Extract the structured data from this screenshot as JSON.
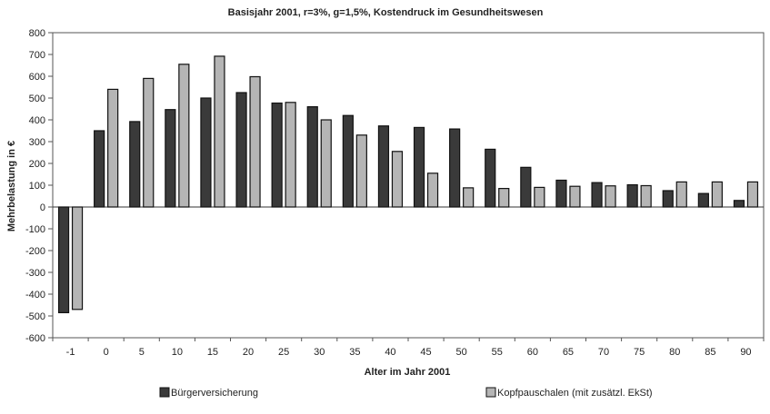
{
  "chart_data": {
    "type": "bar",
    "title": "Basisjahr 2001, r=3%, g=1,5%, Kostendruck im Gesundheitswesen",
    "xlabel": "Alter im Jahr 2001",
    "ylabel": "Mehrbelastung in €",
    "categories": [
      "-1",
      "0",
      "5",
      "10",
      "15",
      "20",
      "25",
      "30",
      "35",
      "40",
      "45",
      "50",
      "55",
      "60",
      "65",
      "70",
      "75",
      "80",
      "85",
      "90"
    ],
    "series": [
      {
        "name": "Bürgerversicherung",
        "color": "#3a3a3a",
        "values": [
          -485,
          350,
          392,
          447,
          500,
          525,
          477,
          460,
          420,
          372,
          365,
          358,
          265,
          182,
          123,
          112,
          102,
          75,
          62,
          30
        ]
      },
      {
        "name": "Kopfpauschalen (mit zusätzl. EkSt)",
        "color": "#b5b5b5",
        "values": [
          -470,
          540,
          590,
          655,
          692,
          598,
          480,
          400,
          330,
          255,
          155,
          88,
          85,
          90,
          95,
          97,
          98,
          115,
          115,
          115
        ]
      }
    ],
    "ylim": [
      -600,
      800
    ],
    "yticks": [
      -600,
      -500,
      -400,
      -300,
      -200,
      -100,
      0,
      100,
      200,
      300,
      400,
      500,
      600,
      700,
      800
    ],
    "grid": false,
    "legend": "bottom"
  }
}
